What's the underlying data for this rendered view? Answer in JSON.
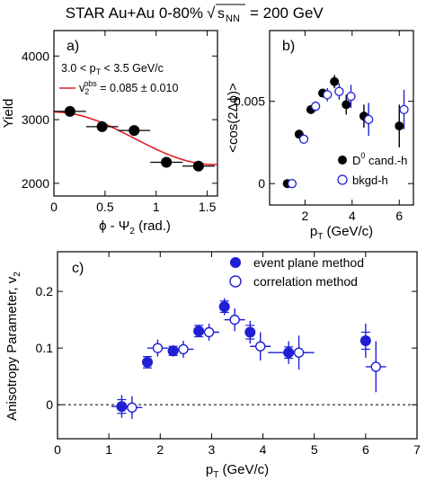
{
  "header": {
    "title_prefix": "STAR  Au+Au 0-80%",
    "sqrt_symbol": "√",
    "s_label": "s",
    "s_sub": "NN",
    "title_suffix": "= 200 GeV"
  },
  "chart_data": [
    {
      "panel": "a",
      "type": "scatter",
      "panel_label": "a)",
      "xlabel": "ϕ - Ψ₂ (rad.)",
      "ylabel": "Yield",
      "xlim": [
        0,
        1.6
      ],
      "ylim": [
        1800,
        4400
      ],
      "x_ticks": [
        0,
        0.5,
        1,
        1.5
      ],
      "x_tick_labels": [
        "0",
        "0.5",
        "1",
        "1.5"
      ],
      "y_ticks": [
        2000,
        3000,
        4000
      ],
      "y_tick_labels": [
        "2000",
        "3000",
        "4000"
      ],
      "annotation_range": "3.0 < p_T < 3.5 GeV/c",
      "annotation_fit": "v₂^obs = 0.085 ± 0.010",
      "points": [
        {
          "x": 0.157,
          "y": 3130,
          "xerr": 0.157
        },
        {
          "x": 0.471,
          "y": 2890,
          "xerr": 0.157
        },
        {
          "x": 0.785,
          "y": 2830,
          "xerr": 0.157
        },
        {
          "x": 1.1,
          "y": 2330,
          "xerr": 0.157
        },
        {
          "x": 1.414,
          "y": 2270,
          "xerr": 0.157
        }
      ],
      "fit": {
        "color": "#e02020",
        "A": 2707,
        "B": 413
      }
    },
    {
      "panel": "b",
      "type": "scatter",
      "panel_label": "b)",
      "xlabel": "p_T (GeV/c)",
      "ylabel": "<cos(2Δϕ)>",
      "xlim": [
        0.5,
        6.6
      ],
      "ylim": [
        -0.0013,
        0.0093
      ],
      "x_ticks": [
        2,
        4,
        6
      ],
      "x_tick_labels": [
        "2",
        "4",
        "6"
      ],
      "y_ticks": [
        0,
        0.005
      ],
      "y_tick_labels": [
        "0",
        "0.005"
      ],
      "legend": [
        "D⁰ cand.-h",
        "bkgd-h"
      ],
      "series": [
        {
          "name": "D⁰ cand.-h",
          "marker": "filled-circle",
          "color": "#000000",
          "points": [
            {
              "x": 1.25,
              "y": 0.0,
              "err": 0.00015
            },
            {
              "x": 1.75,
              "y": 0.003,
              "err": 0.00015
            },
            {
              "x": 2.25,
              "y": 0.0045,
              "err": 0.00015
            },
            {
              "x": 2.75,
              "y": 0.0055,
              "err": 0.0002
            },
            {
              "x": 3.25,
              "y": 0.0062,
              "err": 0.0004
            },
            {
              "x": 3.75,
              "y": 0.0048,
              "err": 0.0006
            },
            {
              "x": 4.5,
              "y": 0.0041,
              "err": 0.0007
            },
            {
              "x": 6.0,
              "y": 0.0035,
              "err": 0.0013
            }
          ]
        },
        {
          "name": "bkgd-h",
          "marker": "open-circle",
          "color": "#1f1fd6",
          "points": [
            {
              "x": 1.45,
              "y": 0.0,
              "err": 0.0001
            },
            {
              "x": 1.95,
              "y": 0.0027,
              "err": 0.0002
            },
            {
              "x": 2.45,
              "y": 0.0047,
              "err": 0.0003
            },
            {
              "x": 2.95,
              "y": 0.0054,
              "err": 0.0004
            },
            {
              "x": 3.45,
              "y": 0.0056,
              "err": 0.0005
            },
            {
              "x": 3.95,
              "y": 0.0053,
              "err": 0.0007
            },
            {
              "x": 4.7,
              "y": 0.0039,
              "err": 0.001
            },
            {
              "x": 6.2,
              "y": 0.0045,
              "err": 0.0012
            }
          ]
        }
      ]
    },
    {
      "panel": "c",
      "type": "scatter",
      "panel_label": "c)",
      "xlabel": "p_T (GeV/c)",
      "ylabel": "Anisotropy Parameter, v₂",
      "xlim": [
        0,
        7
      ],
      "ylim": [
        -0.06,
        0.27
      ],
      "x_ticks": [
        0,
        1,
        2,
        3,
        4,
        5,
        6,
        7
      ],
      "x_tick_labels": [
        "0",
        "1",
        "2",
        "3",
        "4",
        "5",
        "6",
        "7"
      ],
      "y_ticks": [
        0,
        0.1,
        0.2
      ],
      "y_tick_labels": [
        "0",
        "0.1",
        "0.2"
      ],
      "reference_line_y": 0,
      "legend": [
        "event plane method",
        "correlation method"
      ],
      "series": [
        {
          "name": "event plane method",
          "marker": "filled-circle",
          "color": "#1f1fd6",
          "points": [
            {
              "x": 1.25,
              "y": -0.003,
              "err": 0.02,
              "xerr": 0.2,
              "sys": 0.012
            },
            {
              "x": 1.75,
              "y": 0.075,
              "err": 0.01,
              "xerr": 0,
              "sys": 0.01
            },
            {
              "x": 2.25,
              "y": 0.095,
              "err": 0.01,
              "xerr": 0,
              "sys": 0.008
            },
            {
              "x": 2.75,
              "y": 0.13,
              "err": 0.01,
              "xerr": 0,
              "sys": 0.01
            },
            {
              "x": 3.25,
              "y": 0.173,
              "err": 0.015,
              "xerr": 0,
              "sys": 0.01
            },
            {
              "x": 3.75,
              "y": 0.128,
              "err": 0.02,
              "xerr": 0,
              "sys": 0.012
            },
            {
              "x": 4.5,
              "y": 0.092,
              "err": 0.02,
              "xerr": 0.4,
              "sys": 0.01
            },
            {
              "x": 6.0,
              "y": 0.113,
              "err": 0.03,
              "xerr": 0,
              "sys": 0.015
            }
          ]
        },
        {
          "name": "correlation method",
          "marker": "open-circle",
          "color": "#1f1fd6",
          "points": [
            {
              "x": 1.45,
              "y": -0.005,
              "err": 0.02,
              "xerr": 0.2
            },
            {
              "x": 1.95,
              "y": 0.1,
              "err": 0.015,
              "xerr": 0.2
            },
            {
              "x": 2.45,
              "y": 0.098,
              "err": 0.015,
              "xerr": 0.2
            },
            {
              "x": 2.95,
              "y": 0.128,
              "err": 0.015,
              "xerr": 0.2
            },
            {
              "x": 3.45,
              "y": 0.15,
              "err": 0.02,
              "xerr": 0.2
            },
            {
              "x": 3.95,
              "y": 0.103,
              "err": 0.025,
              "xerr": 0.2
            },
            {
              "x": 4.7,
              "y": 0.092,
              "err": 0.03,
              "xerr": 0.3
            },
            {
              "x": 6.2,
              "y": 0.067,
              "err": 0.045,
              "xerr": 0.2
            }
          ]
        }
      ]
    }
  ]
}
